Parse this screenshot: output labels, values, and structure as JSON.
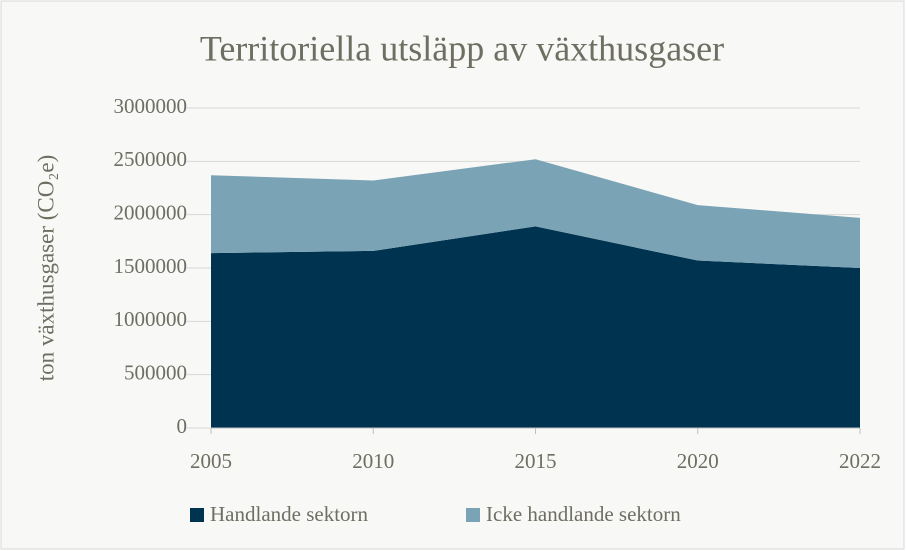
{
  "chart_data": {
    "type": "stacked_area",
    "title": "Territoriella utsläpp av växthusgaser",
    "y_label": "ton växthusgaser (CO₂e)",
    "categories": [
      "2005",
      "2010",
      "2015",
      "2020",
      "2022"
    ],
    "series": [
      {
        "name": "Handlande sektorn",
        "color": "#003350",
        "values": [
          1640000,
          1660000,
          1890000,
          1570000,
          1500000
        ]
      },
      {
        "name": "Icke handlande sektorn",
        "color": "#7ba3b6",
        "values": [
          730000,
          660000,
          630000,
          520000,
          470000
        ]
      }
    ],
    "ylim": [
      0,
      3000000
    ],
    "yticks": [
      0,
      500000,
      1000000,
      1500000,
      2000000,
      2500000,
      3000000
    ],
    "grid": true,
    "legend": "bottom"
  }
}
